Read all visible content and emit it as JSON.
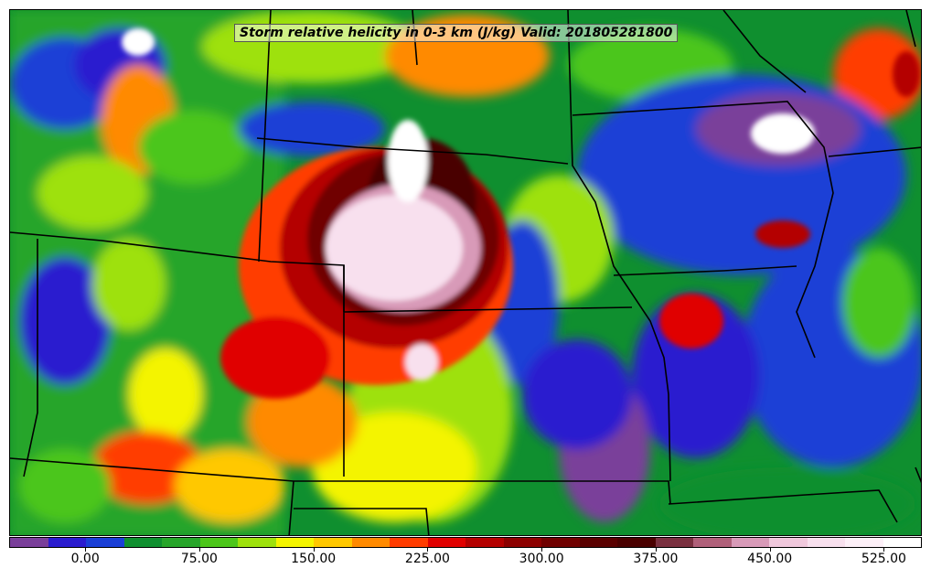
{
  "title": "Storm relative helicity in 0-3 km (J/kg) Valid: 201805281800",
  "colorbar": {
    "colors": [
      "#7a3f9a",
      "#2a1ccf",
      "#1a3fd6",
      "#0f8f2f",
      "#27a52a",
      "#4cc61a",
      "#9ee10d",
      "#f4f400",
      "#ffc800",
      "#ff8a00",
      "#ff3c00",
      "#e00000",
      "#b40000",
      "#8c0000",
      "#700000",
      "#5a0000",
      "#4a0000",
      "#7a3040",
      "#b0607a",
      "#d89ab8",
      "#f0c8dc",
      "#f8e0ee",
      "#fdf0f8",
      "#ffffff"
    ],
    "tick_labels": [
      "0.00",
      "75.00",
      "150.00",
      "225.00",
      "300.00",
      "375.00",
      "450.00",
      "525.00"
    ],
    "tick_values": [
      0,
      75,
      150,
      225,
      300,
      375,
      450,
      525
    ],
    "min": -50,
    "max": 550
  }
}
